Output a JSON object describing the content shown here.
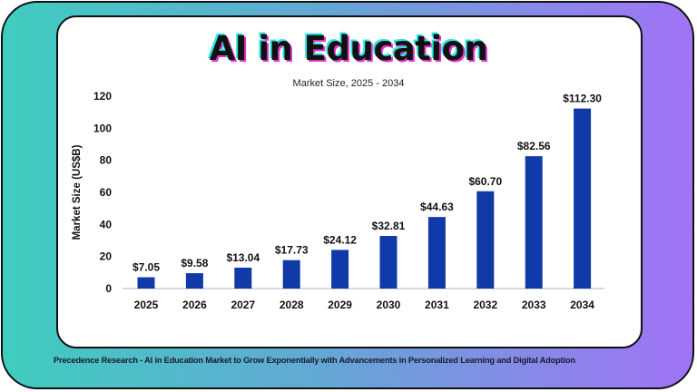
{
  "chart_data": {
    "type": "bar",
    "title": "AI in Education",
    "subtitle": "Market Size, 2025 - 2034",
    "xlabel": "",
    "ylabel": "Market Size (US$B)",
    "categories": [
      "2025",
      "2026",
      "2027",
      "2028",
      "2029",
      "2030",
      "2031",
      "2032",
      "2033",
      "2034"
    ],
    "values": [
      7.05,
      9.58,
      13.04,
      17.73,
      24.12,
      32.81,
      44.63,
      60.7,
      82.56,
      112.3
    ],
    "data_labels": [
      "$7.05",
      "$9.58",
      "$13.04",
      "$17.73",
      "$24.12",
      "$32.81",
      "$44.63",
      "$60.70",
      "$82.56",
      "$112.30"
    ],
    "ylim": [
      0,
      120
    ],
    "yticks": [
      0,
      20,
      40,
      60,
      80,
      100,
      120
    ],
    "grid": false,
    "bar_color": "#0f3aa8"
  },
  "footer": "Precedence Research - AI in Education Market to Grow Exponentially with Advancements in Personalized Learning and Digital Adoption",
  "colors": {
    "gradient_start": "#3fcdbf",
    "gradient_end": "#a073f6"
  }
}
